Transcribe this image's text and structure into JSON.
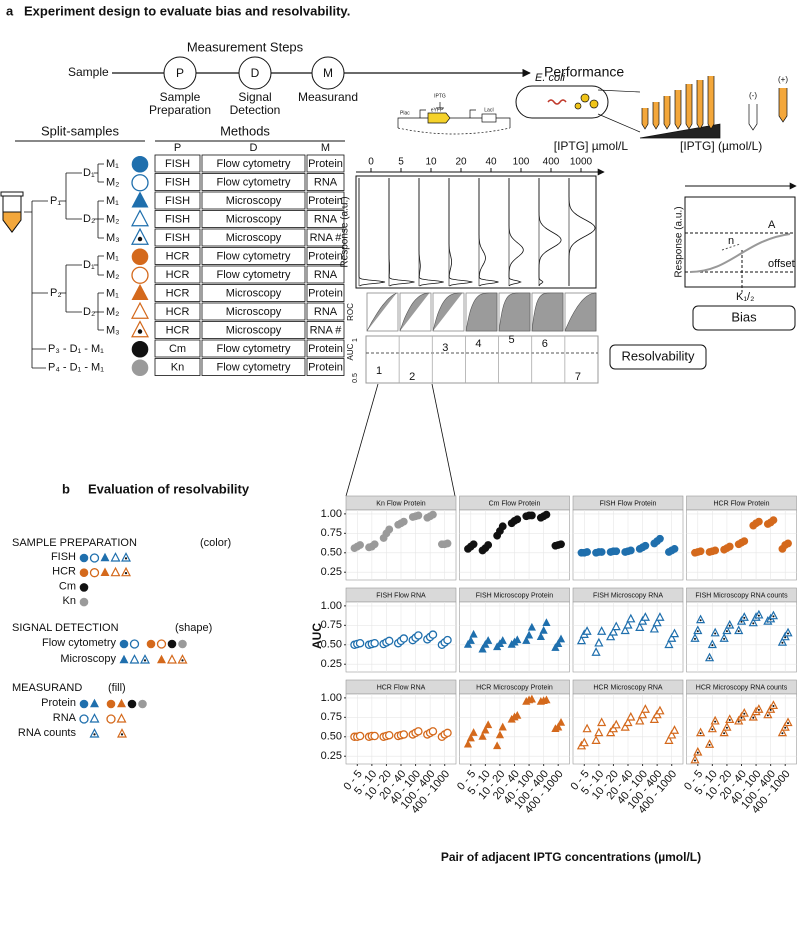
{
  "panel_a": {
    "label": "a",
    "title": "Experiment design to evaluate bias and resolvability.",
    "steps_title": "Measurement Steps",
    "sample": "Sample",
    "performance": "Performance",
    "steps": [
      {
        "letter": "P",
        "name": [
          "Sample",
          "Preparation"
        ]
      },
      {
        "letter": "D",
        "name": [
          "Signal",
          "Detection"
        ]
      },
      {
        "letter": "M",
        "name": [
          "Measurand"
        ]
      }
    ],
    "construct": {
      "inducer": "IPTG",
      "promoter": "Plac",
      "reporter": "eYFP",
      "repressor": "LacI",
      "organism": "E. coli",
      "neg": "(-)",
      "pos": "(+)"
    },
    "split_title": "Split-samples",
    "methods_title": "Methods",
    "methods_header": [
      "P",
      "D",
      "M"
    ],
    "methods": [
      [
        "FISH",
        "Flow cytometry",
        "Protein"
      ],
      [
        "FISH",
        "Flow cytometry",
        "RNA"
      ],
      [
        "FISH",
        "Microscopy",
        "Protein"
      ],
      [
        "FISH",
        "Microscopy",
        "RNA"
      ],
      [
        "FISH",
        "Microscopy",
        "RNA #"
      ],
      [
        "HCR",
        "Flow cytometry",
        "Protein"
      ],
      [
        "HCR",
        "Flow cytometry",
        "RNA"
      ],
      [
        "HCR",
        "Microscopy",
        "Protein"
      ],
      [
        "HCR",
        "Microscopy",
        "RNA"
      ],
      [
        "HCR",
        "Microscopy",
        "RNA #"
      ],
      [
        "Cm",
        "Flow cytometry",
        "Protein"
      ],
      [
        "Kn",
        "Flow cytometry",
        "Protein"
      ]
    ],
    "tree": {
      "p": [
        "P₁",
        "P₂"
      ],
      "d": [
        "D₁",
        "D₂",
        "D₁",
        "D₂"
      ],
      "m": [
        "M₁",
        "M₂",
        "M₁",
        "M₂",
        "M₃",
        "M₁",
        "M₂",
        "M₁",
        "M₂",
        "M₃"
      ],
      "extra": [
        "P₃ - D₁ - M₁",
        "P₄ - D₁ - M₁"
      ]
    },
    "iptg_axis": "[IPTG] µmol/L",
    "concentrations": [
      0,
      5,
      10,
      20,
      40,
      100,
      400,
      1000
    ],
    "response_label": "Response (a.u.)",
    "roc_label": "ROC",
    "auc_label": "AUC",
    "auc_ticks": [
      "0.5",
      "1"
    ],
    "auc_pairs": [
      1,
      2,
      3,
      4,
      5,
      6,
      7
    ],
    "resolvability": "Resolvability",
    "bias_axis": "[IPTG] (µmol/L)",
    "bias_response": "Response (a.u.)",
    "bias_params": {
      "a": "A",
      "n": "n",
      "offset": "offset",
      "k": "K₁/₂"
    },
    "bias": "Bias"
  },
  "panel_b": {
    "label": "b",
    "title": "Evaluation of resolvability",
    "legend": {
      "sample_title": "SAMPLE PREPARATION",
      "sample_note": "(color)",
      "samples": [
        {
          "name": "FISH",
          "color": "#1f6fad"
        },
        {
          "name": "HCR",
          "color": "#d4691c"
        },
        {
          "name": "Cm",
          "color": "#111111"
        },
        {
          "name": "Kn",
          "color": "#9a9a9a"
        }
      ],
      "detection_title": "SIGNAL DETECTION",
      "detection_note": "(shape)",
      "detections": [
        "Flow cytometry",
        "Microscopy"
      ],
      "measurand_title": "MEASURAND",
      "measurand_note": "(fill)",
      "measurands": [
        "Protein",
        "RNA",
        "RNA counts"
      ]
    }
  },
  "chart_data": {
    "type": "facet-scatter",
    "xlabel": "Pair of adjacent IPTG concentrations (µmol/L)",
    "ylabel": "AUC",
    "categories": [
      "0 - 5",
      "5 - 10",
      "10 - 20",
      "20 - 40",
      "40 - 100",
      "100 - 400",
      "400 - 1000"
    ],
    "ylim": [
      0.15,
      1.05
    ],
    "yticks": [
      0.25,
      {
        "value": 0.5,
        "label": "0.50"
      },
      0.75,
      {
        "value": 1,
        "label": "1.00"
      }
    ],
    "grid": true,
    "panels": [
      {
        "title": "Kn Flow Protein",
        "color": "#9a9a9a",
        "shape": "circle",
        "fill": "filled",
        "values": [
          [
            0.56,
            0.58,
            0.6
          ],
          [
            0.57,
            0.58,
            0.61
          ],
          [
            0.69,
            0.75,
            0.8
          ],
          [
            0.86,
            0.88,
            0.9
          ],
          [
            0.96,
            0.97,
            0.98
          ],
          [
            0.95,
            0.97,
            0.99
          ],
          [
            0.61,
            0.61,
            0.62
          ]
        ]
      },
      {
        "title": "Cm Flow Protein",
        "color": "#111111",
        "shape": "circle",
        "fill": "filled",
        "values": [
          [
            0.55,
            0.58,
            0.61
          ],
          [
            0.53,
            0.56,
            0.6
          ],
          [
            0.72,
            0.78,
            0.84
          ],
          [
            0.88,
            0.91,
            0.93
          ],
          [
            0.97,
            0.98,
            0.98
          ],
          [
            0.95,
            0.97,
            0.99
          ],
          [
            0.59,
            0.6,
            0.61
          ]
        ]
      },
      {
        "title": "FISH Flow Protein",
        "color": "#1f6fad",
        "shape": "circle",
        "fill": "filled",
        "values": [
          [
            0.5,
            0.5,
            0.51
          ],
          [
            0.5,
            0.51,
            0.51
          ],
          [
            0.51,
            0.52,
            0.52
          ],
          [
            0.51,
            0.52,
            0.53
          ],
          [
            0.55,
            0.57,
            0.59
          ],
          [
            0.62,
            0.65,
            0.68
          ],
          [
            0.51,
            0.53,
            0.55
          ]
        ]
      },
      {
        "title": "HCR Flow Protein",
        "color": "#d4691c",
        "shape": "circle",
        "fill": "filled",
        "values": [
          [
            0.5,
            0.51,
            0.52
          ],
          [
            0.51,
            0.52,
            0.53
          ],
          [
            0.54,
            0.56,
            0.58
          ],
          [
            0.61,
            0.63,
            0.65
          ],
          [
            0.85,
            0.88,
            0.9
          ],
          [
            0.87,
            0.89,
            0.92
          ],
          [
            0.55,
            0.6,
            0.62
          ]
        ]
      },
      {
        "title": "FISH Flow RNA",
        "color": "#1f6fad",
        "shape": "circle",
        "fill": "open",
        "values": [
          [
            0.5,
            0.51,
            0.52
          ],
          [
            0.5,
            0.51,
            0.52
          ],
          [
            0.51,
            0.53,
            0.55
          ],
          [
            0.52,
            0.55,
            0.58
          ],
          [
            0.56,
            0.59,
            0.62
          ],
          [
            0.57,
            0.6,
            0.63
          ],
          [
            0.5,
            0.53,
            0.56
          ]
        ]
      },
      {
        "title": "FISH Microscopy Protein",
        "color": "#1f6fad",
        "shape": "triangle",
        "fill": "filled",
        "values": [
          [
            0.5,
            0.55,
            0.63
          ],
          [
            0.44,
            0.5,
            0.55
          ],
          [
            0.47,
            0.51,
            0.55
          ],
          [
            0.5,
            0.53,
            0.56
          ],
          [
            0.55,
            0.62,
            0.72
          ],
          [
            0.6,
            0.68,
            0.78
          ],
          [
            0.46,
            0.51,
            0.57
          ]
        ]
      },
      {
        "title": "FISH Microscopy RNA",
        "color": "#1f6fad",
        "shape": "triangle",
        "fill": "open",
        "values": [
          [
            0.55,
            0.63,
            0.67
          ],
          [
            0.4,
            0.52,
            0.67
          ],
          [
            0.6,
            0.66,
            0.73
          ],
          [
            0.68,
            0.75,
            0.83
          ],
          [
            0.72,
            0.8,
            0.85
          ],
          [
            0.7,
            0.78,
            0.85
          ],
          [
            0.5,
            0.58,
            0.64
          ]
        ]
      },
      {
        "title": "FISH Microscopy RNA counts",
        "color": "#1f6fad",
        "shape": "triangle",
        "fill": "dot",
        "values": [
          [
            0.58,
            0.68,
            0.82
          ],
          [
            0.33,
            0.5,
            0.65
          ],
          [
            0.58,
            0.68,
            0.75
          ],
          [
            0.68,
            0.8,
            0.85
          ],
          [
            0.78,
            0.85,
            0.88
          ],
          [
            0.8,
            0.83,
            0.87
          ],
          [
            0.53,
            0.6,
            0.65
          ]
        ]
      },
      {
        "title": "HCR Flow RNA",
        "color": "#d4691c",
        "shape": "circle",
        "fill": "open",
        "values": [
          [
            0.5,
            0.5,
            0.51
          ],
          [
            0.5,
            0.51,
            0.51
          ],
          [
            0.5,
            0.51,
            0.52
          ],
          [
            0.51,
            0.52,
            0.53
          ],
          [
            0.53,
            0.55,
            0.57
          ],
          [
            0.53,
            0.55,
            0.57
          ],
          [
            0.5,
            0.53,
            0.55
          ]
        ]
      },
      {
        "title": "HCR Microscopy Protein",
        "color": "#d4691c",
        "shape": "triangle",
        "fill": "filled",
        "values": [
          [
            0.4,
            0.48,
            0.55
          ],
          [
            0.5,
            0.58,
            0.65
          ],
          [
            0.38,
            0.52,
            0.62
          ],
          [
            0.72,
            0.75,
            0.77
          ],
          [
            0.95,
            0.97,
            0.98
          ],
          [
            0.95,
            0.96,
            0.97
          ],
          [
            0.6,
            0.62,
            0.68
          ]
        ]
      },
      {
        "title": "HCR Microscopy RNA",
        "color": "#d4691c",
        "shape": "triangle",
        "fill": "open",
        "values": [
          [
            0.38,
            0.42,
            0.6
          ],
          [
            0.45,
            0.55,
            0.68
          ],
          [
            0.55,
            0.6,
            0.65
          ],
          [
            0.62,
            0.68,
            0.75
          ],
          [
            0.7,
            0.78,
            0.85
          ],
          [
            0.72,
            0.78,
            0.83
          ],
          [
            0.45,
            0.52,
            0.58
          ]
        ]
      },
      {
        "title": "HCR Microscopy RNA counts",
        "color": "#d4691c",
        "shape": "triangle",
        "fill": "dot",
        "values": [
          [
            0.2,
            0.3,
            0.55
          ],
          [
            0.4,
            0.6,
            0.7
          ],
          [
            0.55,
            0.62,
            0.72
          ],
          [
            0.7,
            0.75,
            0.8
          ],
          [
            0.75,
            0.82,
            0.85
          ],
          [
            0.78,
            0.85,
            0.9
          ],
          [
            0.55,
            0.62,
            0.68
          ]
        ]
      }
    ]
  }
}
